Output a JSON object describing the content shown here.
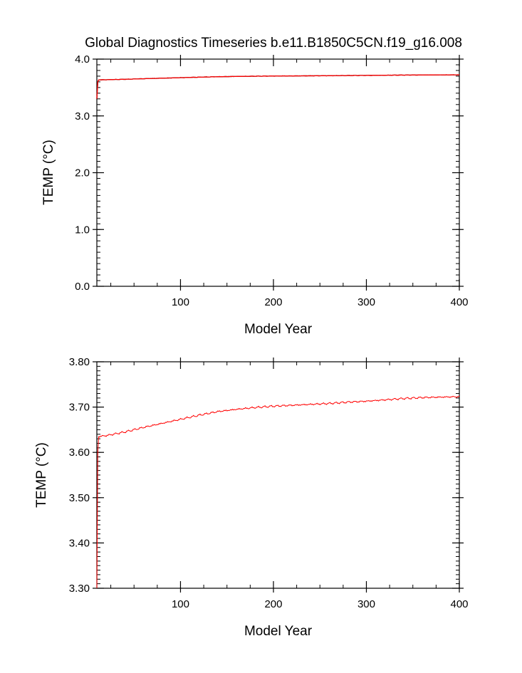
{
  "title": "Global Diagnostics Timeseries b.e11.B1850C5CN.f19_g16.008",
  "chart_data": [
    {
      "type": "line",
      "xlabel": "Model Year",
      "ylabel": "TEMP (°C)",
      "xlim": [
        10,
        400
      ],
      "ylim": [
        0.0,
        4.0
      ],
      "xticks": [
        "100",
        "200",
        "300",
        "400"
      ],
      "yticks": [
        "0.0",
        "1.0",
        "2.0",
        "3.0",
        "4.0"
      ],
      "series": [
        {
          "color": "#000000",
          "anchor_x": [
            10,
            11,
            12,
            20,
            40,
            60,
            80,
            100,
            120,
            140,
            160,
            180,
            200,
            220,
            240,
            260,
            280,
            300,
            320,
            340,
            360,
            380,
            400
          ],
          "anchor_y": [
            3.3,
            3.6,
            3.635,
            3.637,
            3.645,
            3.655,
            3.664,
            3.673,
            3.682,
            3.69,
            3.695,
            3.699,
            3.702,
            3.704,
            3.706,
            3.708,
            3.711,
            3.713,
            3.716,
            3.719,
            3.721,
            3.722,
            3.723
          ]
        },
        {
          "color": "#ff0000",
          "anchor_x": [
            10,
            11,
            12,
            20,
            40,
            60,
            80,
            100,
            120,
            140,
            160,
            180,
            200,
            220,
            240,
            260,
            280,
            300,
            320,
            340,
            360,
            380,
            400
          ],
          "anchor_y": [
            3.3,
            3.6,
            3.635,
            3.637,
            3.645,
            3.655,
            3.664,
            3.673,
            3.682,
            3.69,
            3.695,
            3.699,
            3.702,
            3.704,
            3.706,
            3.708,
            3.711,
            3.713,
            3.716,
            3.719,
            3.721,
            3.722,
            3.723
          ]
        }
      ]
    },
    {
      "type": "line",
      "xlabel": "Model Year",
      "ylabel": "TEMP (°C)",
      "xlim": [
        10,
        400
      ],
      "ylim": [
        3.3,
        3.8
      ],
      "xticks": [
        "100",
        "200",
        "300",
        "400"
      ],
      "yticks": [
        "3.30",
        "3.40",
        "3.50",
        "3.60",
        "3.70",
        "3.80"
      ],
      "series": [
        {
          "color": "#ff0000",
          "anchor_x": [
            10,
            11,
            12,
            20,
            40,
            60,
            80,
            100,
            120,
            140,
            160,
            180,
            200,
            220,
            240,
            260,
            280,
            300,
            320,
            340,
            360,
            380,
            400
          ],
          "anchor_y": [
            3.3,
            3.6,
            3.635,
            3.637,
            3.645,
            3.655,
            3.664,
            3.673,
            3.682,
            3.69,
            3.695,
            3.699,
            3.702,
            3.704,
            3.706,
            3.708,
            3.711,
            3.713,
            3.716,
            3.719,
            3.721,
            3.722,
            3.723
          ]
        }
      ]
    }
  ]
}
